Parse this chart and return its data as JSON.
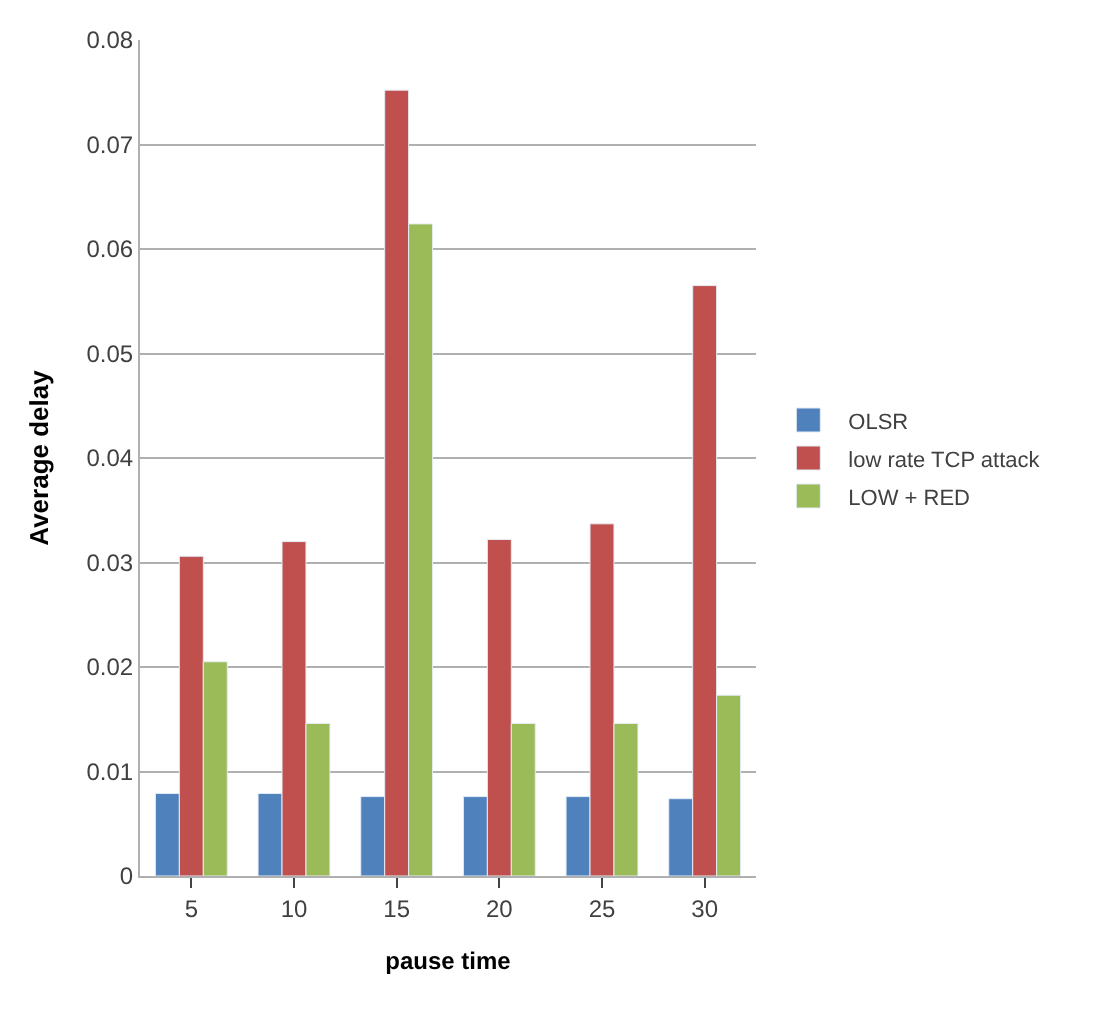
{
  "chart_data": {
    "type": "bar",
    "xlabel": "pause time",
    "ylabel": "Average delay",
    "categories": [
      "5",
      "10",
      "15",
      "20",
      "25",
      "30"
    ],
    "series": [
      {
        "name": "OLSR",
        "color": "#4f81bd",
        "values": [
          0.0079,
          0.0079,
          0.0076,
          0.0076,
          0.0076,
          0.0074
        ]
      },
      {
        "name": "low rate TCP attack",
        "color": "#c0504d",
        "values": [
          0.0306,
          0.032,
          0.0752,
          0.0322,
          0.0337,
          0.0565
        ]
      },
      {
        "name": "LOW + RED",
        "color": "#9bbb59",
        "values": [
          0.0205,
          0.0146,
          0.0624,
          0.0146,
          0.0146,
          0.0173
        ]
      }
    ],
    "ylim": [
      0,
      0.08
    ],
    "yticks": [
      {
        "value": 0,
        "label": "0"
      },
      0.01,
      0.02,
      0.03,
      0.04,
      0.05,
      0.06,
      0.07,
      0.08
    ],
    "grid": "y",
    "legend": "right"
  }
}
